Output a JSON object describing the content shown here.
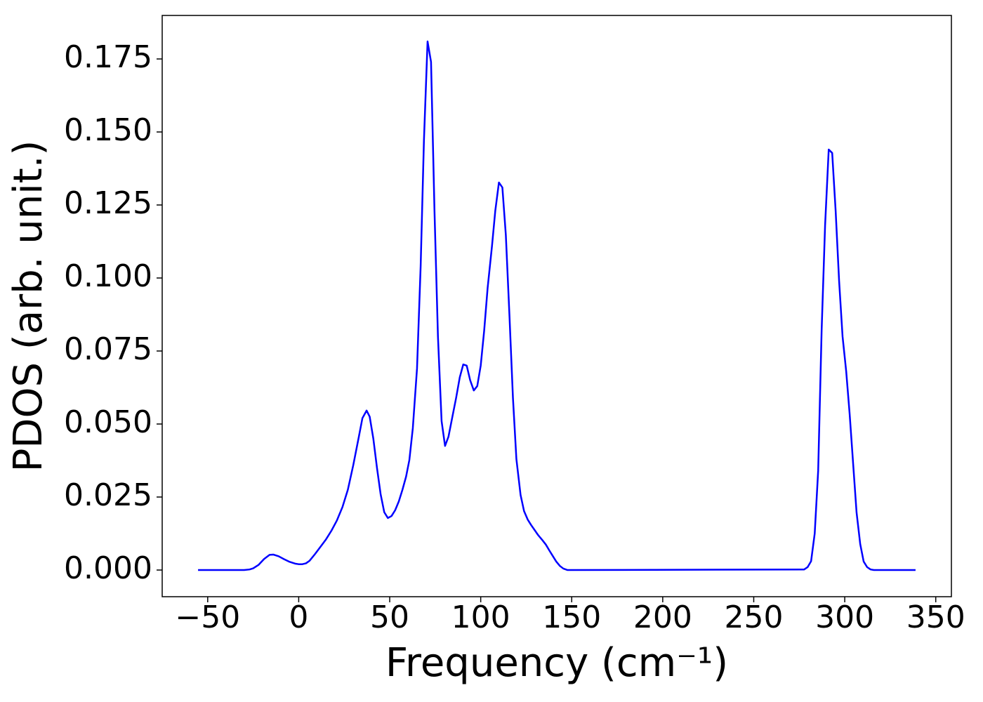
{
  "chart_data": {
    "type": "line",
    "x_label": "Frequency (cm⁻¹)",
    "y_label": "PDOS (arb. unit.)",
    "xlim": [
      -75,
      358.6
    ],
    "ylim": [
      -0.00913,
      0.1899
    ],
    "xticks": [
      {
        "value": -50,
        "label": "−50"
      },
      0,
      50,
      100,
      150,
      200,
      250,
      300,
      350
    ],
    "yticks": [
      {
        "value": 0,
        "label": "0.000"
      },
      0.025,
      {
        "value": 0.05,
        "label": "0.050"
      },
      0.075,
      {
        "value": 0.1,
        "label": "0.100"
      },
      0.125,
      {
        "value": 0.15,
        "label": "0.150"
      },
      0.175
    ],
    "grid": false,
    "x": [
      -55.3,
      -30,
      -27,
      -25,
      -22,
      -19,
      -16,
      -14,
      -11,
      -8,
      -5,
      -2,
      0,
      2,
      4,
      6,
      9,
      12,
      15,
      18,
      21,
      24,
      27,
      30,
      33,
      35,
      37.3,
      39,
      41,
      43,
      45,
      47,
      49,
      51,
      53,
      55,
      57,
      59,
      60.8,
      62.7,
      65,
      67,
      68.8,
      70.8,
      72.7,
      74.6,
      76.5,
      78.5,
      80.4,
      82.3,
      84.6,
      86.5,
      88.5,
      90.4,
      92.3,
      94.2,
      96.2,
      98.1,
      100,
      101.9,
      103.8,
      106.2,
      108,
      110,
      111.9,
      113.8,
      115.8,
      117.7,
      119.6,
      121.9,
      123.8,
      125.8,
      127.7,
      129.6,
      131.5,
      133.8,
      135.8,
      137.7,
      139.6,
      141.5,
      143.5,
      145.4,
      147.7,
      277.7,
      279.6,
      281.5,
      283.5,
      285.4,
      287.3,
      289.2,
      291.2,
      293.1,
      295,
      296.9,
      298.8,
      300.8,
      302.7,
      304.6,
      306.5,
      308.5,
      310.4,
      312.3,
      314.2,
      316,
      338.9
    ],
    "series": [
      {
        "name": "PDOS",
        "color": "#0000ff",
        "values": [
          0,
          0,
          0.0002,
          0.0006,
          0.0018,
          0.0038,
          0.0052,
          0.0053,
          0.0047,
          0.0037,
          0.0028,
          0.0022,
          0.002,
          0.002,
          0.0023,
          0.0032,
          0.0055,
          0.008,
          0.0105,
          0.0135,
          0.017,
          0.0215,
          0.0275,
          0.036,
          0.0455,
          0.052,
          0.0546,
          0.0525,
          0.045,
          0.035,
          0.026,
          0.0198,
          0.0178,
          0.0185,
          0.0205,
          0.0235,
          0.0275,
          0.032,
          0.0377,
          0.0486,
          0.069,
          0.104,
          0.147,
          0.181,
          0.174,
          0.123,
          0.08,
          0.051,
          0.0425,
          0.0457,
          0.053,
          0.059,
          0.066,
          0.0704,
          0.07,
          0.065,
          0.0615,
          0.063,
          0.07,
          0.082,
          0.0966,
          0.111,
          0.123,
          0.1327,
          0.131,
          0.1147,
          0.087,
          0.059,
          0.038,
          0.0257,
          0.0202,
          0.0173,
          0.0154,
          0.0137,
          0.012,
          0.0103,
          0.0087,
          0.0067,
          0.0048,
          0.0029,
          0.0014,
          0.0005,
          0,
          0.0002,
          0.001,
          0.003,
          0.0125,
          0.034,
          0.082,
          0.118,
          0.144,
          0.1428,
          0.123,
          0.099,
          0.08,
          0.068,
          0.0534,
          0.0365,
          0.0197,
          0.0089,
          0.0029,
          0.001,
          0.0002,
          0,
          0
        ]
      }
    ]
  }
}
